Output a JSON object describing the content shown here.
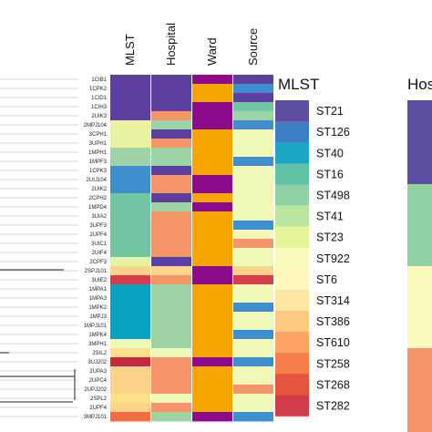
{
  "columns": [
    "MLST",
    "Hospital",
    "Ward",
    "Source"
  ],
  "leaves": [
    {
      "label": "1CIB1",
      "cells": [
        "#5d3fa0",
        "#5d3fa0",
        "#8c0a8c",
        "#5d3fa0"
      ]
    },
    {
      "label": "1CPK2",
      "cells": [
        "#5d3fa0",
        "#5d3fa0",
        "#f6a500",
        "#3f8fcf"
      ]
    },
    {
      "label": "1CID1",
      "cells": [
        "#5d3fa0",
        "#5d3fa0",
        "#f6a500",
        "#5d3fa0"
      ]
    },
    {
      "label": "1CIH3",
      "cells": [
        "#5d3fa0",
        "#5d3fa0",
        "#8c0a8c",
        "#72c6a4"
      ]
    },
    {
      "label": "2UIK3",
      "cells": [
        "#5d3fa0",
        "#f7956a",
        "#8c0a8c",
        "#9ed3a5"
      ]
    },
    {
      "label": "2MPJ104",
      "cells": [
        "#e9f2a2",
        "#9ed3a5",
        "#8c0a8c",
        "#3f8fcf"
      ]
    },
    {
      "label": "3CPH1",
      "cells": [
        "#e9f2a2",
        "#5d3fa0",
        "#f6a500",
        "#f0f8b8"
      ]
    },
    {
      "label": "3UPH1",
      "cells": [
        "#e9f2a2",
        "#f7956a",
        "#f6a500",
        "#f0f8b8"
      ]
    },
    {
      "label": "1MPH1",
      "cells": [
        "#9ed3a5",
        "#9ed3a5",
        "#f6a500",
        "#f0f8b8"
      ]
    },
    {
      "label": "1MPF3",
      "cells": [
        "#9ed3a5",
        "#9ed3a5",
        "#f6a500",
        "#3f8fcf"
      ]
    },
    {
      "label": "1CPK3",
      "cells": [
        "#3f8fcf",
        "#5d3fa0",
        "#f6a500",
        "#f0f8b8"
      ]
    },
    {
      "label": "2UIJ104",
      "cells": [
        "#3f8fcf",
        "#f7956a",
        "#8c0a8c",
        "#f0f8b8"
      ]
    },
    {
      "label": "2UIK2",
      "cells": [
        "#3f8fcf",
        "#f7956a",
        "#8c0a8c",
        "#f0f8b8"
      ]
    },
    {
      "label": "2CPH2",
      "cells": [
        "#72c6a4",
        "#5d3fa0",
        "#f6a500",
        "#f0f8b8"
      ]
    },
    {
      "label": "1MPD4",
      "cells": [
        "#72c6a4",
        "#9ed3a5",
        "#8c0a8c",
        "#f0f8b8"
      ]
    },
    {
      "label": "3UIA2",
      "cells": [
        "#72c6a4",
        "#f7956a",
        "#f6a500",
        "#f0f8b8"
      ]
    },
    {
      "label": "3UPF3",
      "cells": [
        "#72c6a4",
        "#f7956a",
        "#f6a500",
        "#3f8fcf"
      ]
    },
    {
      "label": "2UPF4",
      "cells": [
        "#72c6a4",
        "#f7956a",
        "#f6a500",
        "#f0f8b8"
      ]
    },
    {
      "label": "3UIC1",
      "cells": [
        "#72c6a4",
        "#f7956a",
        "#f6a500",
        "#f7956a"
      ]
    },
    {
      "label": "2UIF4",
      "cells": [
        "#72c6a4",
        "#f7956a",
        "#f6a500",
        "#f0f8b8"
      ]
    },
    {
      "label": "2CPF3",
      "cells": [
        "#e9f2a2",
        "#5d3fa0",
        "#f6a500",
        "#f0f8b8"
      ]
    },
    {
      "label": "2SPJ101",
      "cells": [
        "#fbd38a",
        "#fbd38a",
        "#8c0a8c",
        "#fbd38a"
      ]
    },
    {
      "label": "3UIE2",
      "cells": [
        "#d53e4f",
        "#f7956a",
        "#8c0a8c",
        "#d53e4f"
      ]
    },
    {
      "label": "1MPA1",
      "cells": [
        "#0aa0c0",
        "#9ed3a5",
        "#f6a500",
        "#f0f8b8"
      ]
    },
    {
      "label": "1MPA3",
      "cells": [
        "#0aa0c0",
        "#9ed3a5",
        "#f6a500",
        "#f0f8b8"
      ]
    },
    {
      "label": "1MPK2",
      "cells": [
        "#0aa0c0",
        "#9ed3a5",
        "#f6a500",
        "#3f8fcf"
      ]
    },
    {
      "label": "1MPJ3",
      "cells": [
        "#0aa0c0",
        "#9ed3a5",
        "#f6a500",
        "#f0f8b8"
      ]
    },
    {
      "label": "1MPJ101",
      "cells": [
        "#0aa0c0",
        "#9ed3a5",
        "#f6a500",
        "#f0f8b8"
      ]
    },
    {
      "label": "1MPK4",
      "cells": [
        "#0aa0c0",
        "#9ed3a5",
        "#f6a500",
        "#3f8fcf"
      ]
    },
    {
      "label": "3MPH1",
      "cells": [
        "#f0f8b8",
        "#9ed3a5",
        "#f6a500",
        "#f0f8b8"
      ]
    },
    {
      "label": "2SIL2",
      "cells": [
        "#fee08b",
        "#f0f8b8",
        "#f6a500",
        "#f0f8b8"
      ]
    },
    {
      "label": "3UJ202",
      "cells": [
        "#c6283e",
        "#f7956a",
        "#8c0a8c",
        "#3f8fcf"
      ]
    },
    {
      "label": "2UPA3",
      "cells": [
        "#fbd38a",
        "#f7956a",
        "#f6a500",
        "#f0f8b8"
      ]
    },
    {
      "label": "2UPC4",
      "cells": [
        "#fbd38a",
        "#f7956a",
        "#f6a500",
        "#f0f8b8"
      ]
    },
    {
      "label": "2UPJ202",
      "cells": [
        "#fbd38a",
        "#f7956a",
        "#f6a500",
        "#f7956a"
      ]
    },
    {
      "label": "2SPL2",
      "cells": [
        "#fee08b",
        "#f0f8b8",
        "#f6a500",
        "#f0f8b8"
      ]
    },
    {
      "label": "2UPF4",
      "cells": [
        "#fbd38a",
        "#f7956a",
        "#f6a500",
        "#f0f8b8"
      ]
    },
    {
      "label": "3MPJ101",
      "cells": [
        "#f36d43",
        "#9ed3a5",
        "#8c0a8c",
        "#3f8fcf"
      ]
    }
  ],
  "legend_mlst": {
    "title": "MLST",
    "items": [
      {
        "label": "ST21",
        "color": "#5d4ea2"
      },
      {
        "label": "ST126",
        "color": "#3c7fc4"
      },
      {
        "label": "ST40",
        "color": "#1ea6c6"
      },
      {
        "label": "ST16",
        "color": "#62c2a4"
      },
      {
        "label": "ST498",
        "color": "#8fd3a4"
      },
      {
        "label": "ST41",
        "color": "#bce5a0"
      },
      {
        "label": "ST23",
        "color": "#e7f59a"
      },
      {
        "label": "ST922",
        "color": "#f9fbbd"
      },
      {
        "label": "ST6",
        "color": "#fff6bd"
      },
      {
        "label": "ST314",
        "color": "#fee6a2"
      },
      {
        "label": "ST386",
        "color": "#fdc980"
      },
      {
        "label": "ST610",
        "color": "#fca565"
      },
      {
        "label": "ST258",
        "color": "#f67d4c"
      },
      {
        "label": "ST268",
        "color": "#e4543f"
      },
      {
        "label": "ST282",
        "color": "#d13c4a"
      }
    ]
  },
  "legend_hospital": {
    "title": "Hos",
    "blocks": [
      "#5d4ea2",
      "#8fd3a4",
      "#f9fbbd",
      "#f7956a"
    ]
  }
}
